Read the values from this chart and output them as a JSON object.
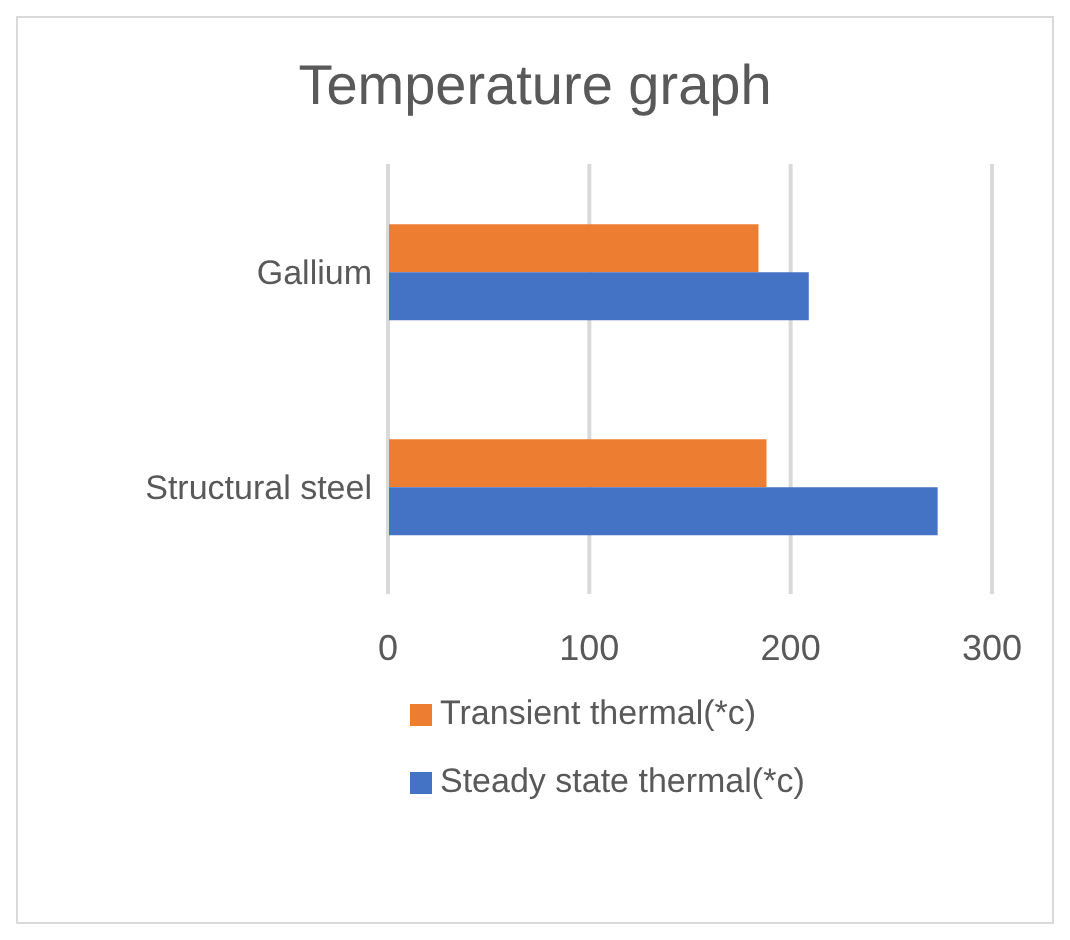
{
  "chart_data": {
    "type": "bar",
    "orientation": "horizontal",
    "title": "Temperature graph",
    "categories": [
      "Gallium",
      "Structural steel"
    ],
    "series": [
      {
        "name": "Transient thermal(*c)",
        "color": "#ed7d31",
        "values": [
          184,
          188
        ]
      },
      {
        "name": "Steady state thermal(*c)",
        "color": "#4472c4",
        "values": [
          209,
          273
        ]
      }
    ],
    "xlim": [
      0,
      300
    ],
    "xticks": [
      0,
      100,
      200,
      300
    ],
    "grid": "x",
    "legend": "bottom"
  }
}
